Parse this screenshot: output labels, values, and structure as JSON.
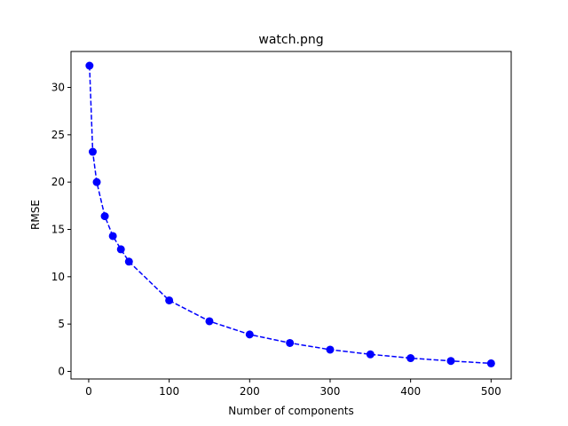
{
  "chart_data": {
    "type": "line",
    "title": "watch.png",
    "xlabel": "Number of components",
    "ylabel": "RMSE",
    "xlim": [
      -22,
      525
    ],
    "ylim": [
      -0.8,
      33.8
    ],
    "xticks": [
      0,
      100,
      200,
      300,
      400,
      500
    ],
    "yticks": [
      0,
      5,
      10,
      15,
      20,
      25,
      30
    ],
    "grid": false,
    "line_style": "dashed",
    "marker": "circle",
    "color": "#0000ff",
    "series": [
      {
        "x": [
          1,
          5,
          10,
          20,
          30,
          40,
          50,
          100,
          150,
          200,
          250,
          300,
          350,
          400,
          450,
          500
        ],
        "y": [
          32.3,
          23.2,
          20.0,
          16.4,
          14.3,
          12.9,
          11.6,
          7.5,
          5.3,
          3.9,
          3.0,
          2.3,
          1.8,
          1.4,
          1.1,
          0.85
        ]
      }
    ]
  }
}
